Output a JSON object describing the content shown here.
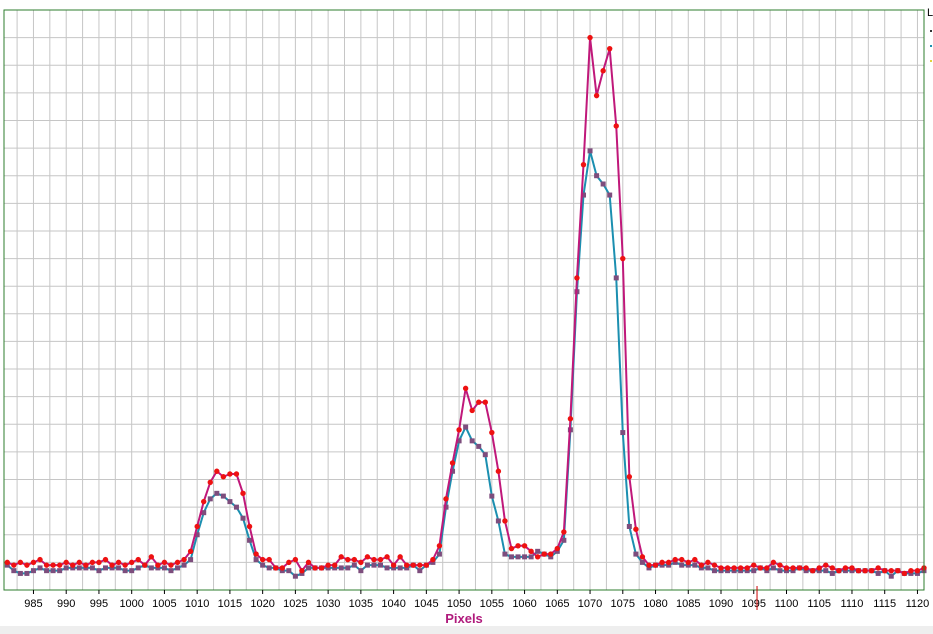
{
  "chart_data": {
    "type": "line",
    "title": "",
    "xlabel": "Pixels",
    "ylabel": "",
    "xlim": [
      980.5,
      1121
    ],
    "ylim": [
      0,
      21
    ],
    "grid": true,
    "x_ticks": [
      985,
      990,
      995,
      1000,
      1005,
      1010,
      1015,
      1020,
      1025,
      1030,
      1035,
      1040,
      1045,
      1050,
      1055,
      1060,
      1065,
      1070,
      1075,
      1080,
      1085,
      1090,
      1095,
      1100,
      1105,
      1110,
      1115,
      1120
    ],
    "x_tick_labels": [
      "985",
      "990",
      "995",
      "1000",
      "1005",
      "1010",
      "1015",
      "1020",
      "1025",
      "1030",
      "1035",
      "1040",
      "1045",
      "1050",
      "1055",
      "1060",
      "1065",
      "1070",
      "1075",
      "1080",
      "1085",
      "1090",
      "1095",
      "1100",
      "1105",
      "1110",
      "1115",
      "1120"
    ],
    "series": [
      {
        "color": "#c0187a",
        "marker": "circle",
        "marker_color": "#ee1111",
        "x": [
          981,
          982,
          983,
          984,
          985,
          986,
          987,
          988,
          989,
          990,
          991,
          992,
          993,
          994,
          995,
          996,
          997,
          998,
          999,
          1000,
          1001,
          1002,
          1003,
          1004,
          1005,
          1006,
          1007,
          1008,
          1009,
          1010,
          1011,
          1012,
          1013,
          1014,
          1015,
          1016,
          1017,
          1018,
          1019,
          1020,
          1021,
          1022,
          1023,
          1024,
          1025,
          1026,
          1027,
          1028,
          1029,
          1030,
          1031,
          1032,
          1033,
          1034,
          1035,
          1036,
          1037,
          1038,
          1039,
          1040,
          1041,
          1042,
          1043,
          1044,
          1045,
          1046,
          1047,
          1048,
          1049,
          1050,
          1051,
          1052,
          1053,
          1054,
          1055,
          1056,
          1057,
          1058,
          1059,
          1060,
          1061,
          1062,
          1063,
          1064,
          1065,
          1066,
          1067,
          1068,
          1069,
          1070,
          1071,
          1072,
          1073,
          1074,
          1075,
          1076,
          1077,
          1078,
          1079,
          1080,
          1081,
          1082,
          1083,
          1084,
          1085,
          1086,
          1087,
          1088,
          1089,
          1090,
          1091,
          1092,
          1093,
          1094,
          1095,
          1096,
          1097,
          1098,
          1099,
          1100,
          1101,
          1102,
          1103,
          1104,
          1105,
          1106,
          1107,
          1108,
          1109,
          1110,
          1111,
          1112,
          1113,
          1114,
          1115,
          1116,
          1117,
          1118,
          1119,
          1120,
          1121
        ],
        "y": [
          1.0,
          0.9,
          1.0,
          0.9,
          1.0,
          1.1,
          0.9,
          0.9,
          0.9,
          1.0,
          0.9,
          1.0,
          0.9,
          1.0,
          1.0,
          1.1,
          0.9,
          1.0,
          0.9,
          1.0,
          1.1,
          0.9,
          1.2,
          0.9,
          1.0,
          0.9,
          1.0,
          1.1,
          1.4,
          2.3,
          3.2,
          3.9,
          4.3,
          4.1,
          4.2,
          4.2,
          3.5,
          2.3,
          1.3,
          1.1,
          1.1,
          0.8,
          0.8,
          1.0,
          1.1,
          0.7,
          1.0,
          0.8,
          0.8,
          0.9,
          0.9,
          1.2,
          1.1,
          1.1,
          1.0,
          1.2,
          1.1,
          1.1,
          1.2,
          0.9,
          1.2,
          0.9,
          0.9,
          0.9,
          0.9,
          1.1,
          1.6,
          3.3,
          4.6,
          5.8,
          7.3,
          6.5,
          6.8,
          6.8,
          5.7,
          4.3,
          2.5,
          1.5,
          1.6,
          1.6,
          1.4,
          1.2,
          1.3,
          1.3,
          1.5,
          2.1,
          6.2,
          11.3,
          15.4,
          20.0,
          17.9,
          18.8,
          19.6,
          16.8,
          12.0,
          4.1,
          2.2,
          1.2,
          0.9,
          0.9,
          1.0,
          1.0,
          1.1,
          1.1,
          1.0,
          1.1,
          0.9,
          1.0,
          0.9,
          0.8,
          0.8,
          0.8,
          0.8,
          0.8,
          0.9,
          0.8,
          0.8,
          1.0,
          0.9,
          0.8,
          0.8,
          0.8,
          0.8,
          0.7,
          0.8,
          0.9,
          0.8,
          0.7,
          0.8,
          0.8,
          0.7,
          0.7,
          0.7,
          0.8,
          0.7,
          0.7,
          0.7,
          0.6,
          0.7,
          0.7,
          0.8
        ]
      },
      {
        "color": "#1b8fb0",
        "marker": "square",
        "marker_color": "#7d4d7d",
        "x": [
          981,
          982,
          983,
          984,
          985,
          986,
          987,
          988,
          989,
          990,
          991,
          992,
          993,
          994,
          995,
          996,
          997,
          998,
          999,
          1000,
          1001,
          1002,
          1003,
          1004,
          1005,
          1006,
          1007,
          1008,
          1009,
          1010,
          1011,
          1012,
          1013,
          1014,
          1015,
          1016,
          1017,
          1018,
          1019,
          1020,
          1021,
          1022,
          1023,
          1024,
          1025,
          1026,
          1027,
          1028,
          1029,
          1030,
          1031,
          1032,
          1033,
          1034,
          1035,
          1036,
          1037,
          1038,
          1039,
          1040,
          1041,
          1042,
          1043,
          1044,
          1045,
          1046,
          1047,
          1048,
          1049,
          1050,
          1051,
          1052,
          1053,
          1054,
          1055,
          1056,
          1057,
          1058,
          1059,
          1060,
          1061,
          1062,
          1063,
          1064,
          1065,
          1066,
          1067,
          1068,
          1069,
          1070,
          1071,
          1072,
          1073,
          1074,
          1075,
          1076,
          1077,
          1078,
          1079,
          1080,
          1081,
          1082,
          1083,
          1084,
          1085,
          1086,
          1087,
          1088,
          1089,
          1090,
          1091,
          1092,
          1093,
          1094,
          1095,
          1096,
          1097,
          1098,
          1099,
          1100,
          1101,
          1102,
          1103,
          1104,
          1105,
          1106,
          1107,
          1108,
          1109,
          1110,
          1111,
          1112,
          1113,
          1114,
          1115,
          1116,
          1117,
          1118,
          1119,
          1120,
          1121
        ],
        "y": [
          0.9,
          0.7,
          0.6,
          0.6,
          0.7,
          0.8,
          0.7,
          0.7,
          0.7,
          0.8,
          0.8,
          0.8,
          0.8,
          0.8,
          0.7,
          0.8,
          0.8,
          0.8,
          0.7,
          0.7,
          0.8,
          0.9,
          0.8,
          0.8,
          0.8,
          0.7,
          0.8,
          0.9,
          1.1,
          2.0,
          2.8,
          3.3,
          3.5,
          3.4,
          3.2,
          3.0,
          2.6,
          1.8,
          1.1,
          0.9,
          0.8,
          0.8,
          0.7,
          0.7,
          0.5,
          0.6,
          0.8,
          0.8,
          0.8,
          0.8,
          0.8,
          0.8,
          0.8,
          0.9,
          0.7,
          0.9,
          0.9,
          0.9,
          0.8,
          0.8,
          0.8,
          0.8,
          0.9,
          0.7,
          0.9,
          1.0,
          1.3,
          3.0,
          4.3,
          5.4,
          5.9,
          5.4,
          5.2,
          4.9,
          3.4,
          2.5,
          1.3,
          1.2,
          1.2,
          1.2,
          1.2,
          1.4,
          1.3,
          1.2,
          1.4,
          1.8,
          5.8,
          10.8,
          14.3,
          15.9,
          15.0,
          14.7,
          14.3,
          11.3,
          5.7,
          2.3,
          1.3,
          1.0,
          0.8,
          0.9,
          0.9,
          0.9,
          1.0,
          0.9,
          0.9,
          0.9,
          0.8,
          0.8,
          0.7,
          0.7,
          0.7,
          0.7,
          0.7,
          0.7,
          0.7,
          0.8,
          0.7,
          0.8,
          0.7,
          0.7,
          0.7,
          0.8,
          0.7,
          0.7,
          0.7,
          0.7,
          0.6,
          0.7,
          0.7,
          0.7,
          0.7,
          0.7,
          0.7,
          0.6,
          0.7,
          0.5,
          0.7,
          0.6,
          0.6,
          0.6,
          0.7
        ]
      }
    ],
    "legend": {
      "placement": "right",
      "clipped_text": "L"
    },
    "cursor_marker_x": 1095.5
  },
  "colors": {
    "plot_frame": "#2e7d2e",
    "grid": "#c6c6c6",
    "axis_title": "#b01a7c",
    "cursor": "#cc0000"
  }
}
